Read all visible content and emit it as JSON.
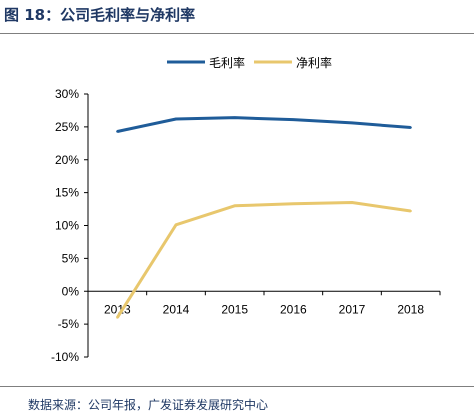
{
  "figure": {
    "title": "图 18：公司毛利率与净利率",
    "source": "数据来源：公司年报，广发证券发展研究中心"
  },
  "chart_data": {
    "type": "line",
    "title": "",
    "xlabel": "",
    "ylabel": "",
    "categories": [
      "2013",
      "2014",
      "2015",
      "2016",
      "2017",
      "2018"
    ],
    "ylim": [
      -10,
      30
    ],
    "yticks": [
      "30%",
      "25%",
      "20%",
      "15%",
      "10%",
      "5%",
      "0%",
      "-5%",
      "-10%"
    ],
    "ytick_values": [
      30,
      25,
      20,
      15,
      10,
      5,
      0,
      -5,
      -10
    ],
    "grid": false,
    "legend_position": "top",
    "series": [
      {
        "name": "毛利率",
        "color": "#1f5c99",
        "values": [
          24.3,
          26.2,
          26.4,
          26.1,
          25.6,
          24.9
        ]
      },
      {
        "name": "净利率",
        "color": "#e8c76d",
        "values": [
          -4.0,
          10.1,
          13.0,
          13.3,
          13.5,
          12.2
        ]
      }
    ]
  }
}
